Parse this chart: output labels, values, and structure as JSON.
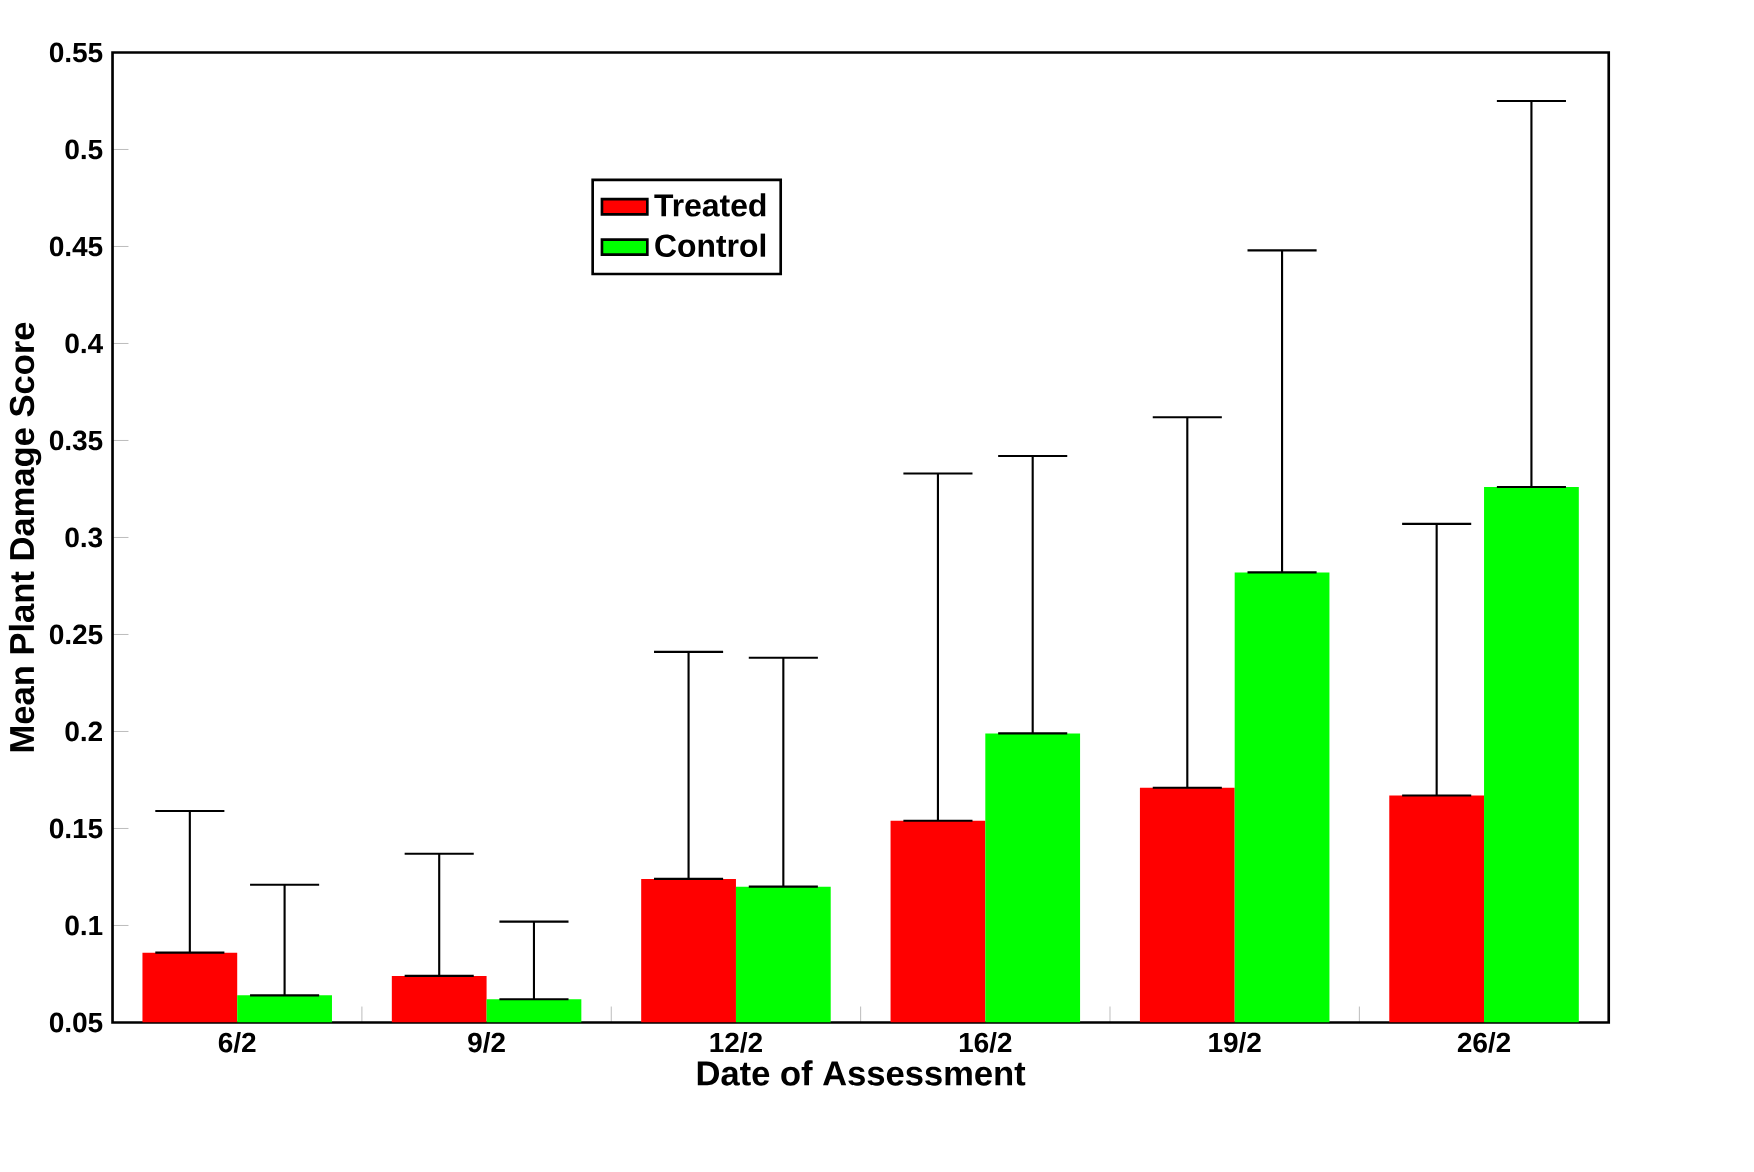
{
  "chart_data": {
    "type": "bar",
    "xlabel": "Date of Assessment",
    "ylabel": "Mean Plant Damage Score",
    "categories": [
      "6/2",
      "9/2",
      "12/2",
      "16/2",
      "19/2",
      "26/2"
    ],
    "series": [
      {
        "name": "Treated",
        "color": "#ff0000",
        "values": [
          0.086,
          0.074,
          0.124,
          0.154,
          0.171,
          0.167
        ],
        "errors": [
          [
            0.086,
            0.159
          ],
          [
            0.074,
            0.137
          ],
          [
            0.124,
            0.241
          ],
          [
            0.154,
            0.333
          ],
          [
            0.171,
            0.362
          ],
          [
            0.167,
            0.307
          ]
        ]
      },
      {
        "name": "Control",
        "color": "#00ff00",
        "values": [
          0.064,
          0.062,
          0.12,
          0.199,
          0.282,
          0.326
        ],
        "errors": [
          [
            0.064,
            0.121
          ],
          [
            0.062,
            0.102
          ],
          [
            0.12,
            0.238
          ],
          [
            0.199,
            0.342
          ],
          [
            0.282,
            0.448
          ],
          [
            0.326,
            0.525
          ]
        ]
      }
    ],
    "ylim": [
      0.05,
      0.55
    ],
    "yticks": [
      0.05,
      0.1,
      0.15,
      0.2,
      0.25,
      0.3,
      0.35,
      0.4,
      0.45,
      0.5,
      0.55
    ],
    "legend": "top left",
    "grid": false
  }
}
